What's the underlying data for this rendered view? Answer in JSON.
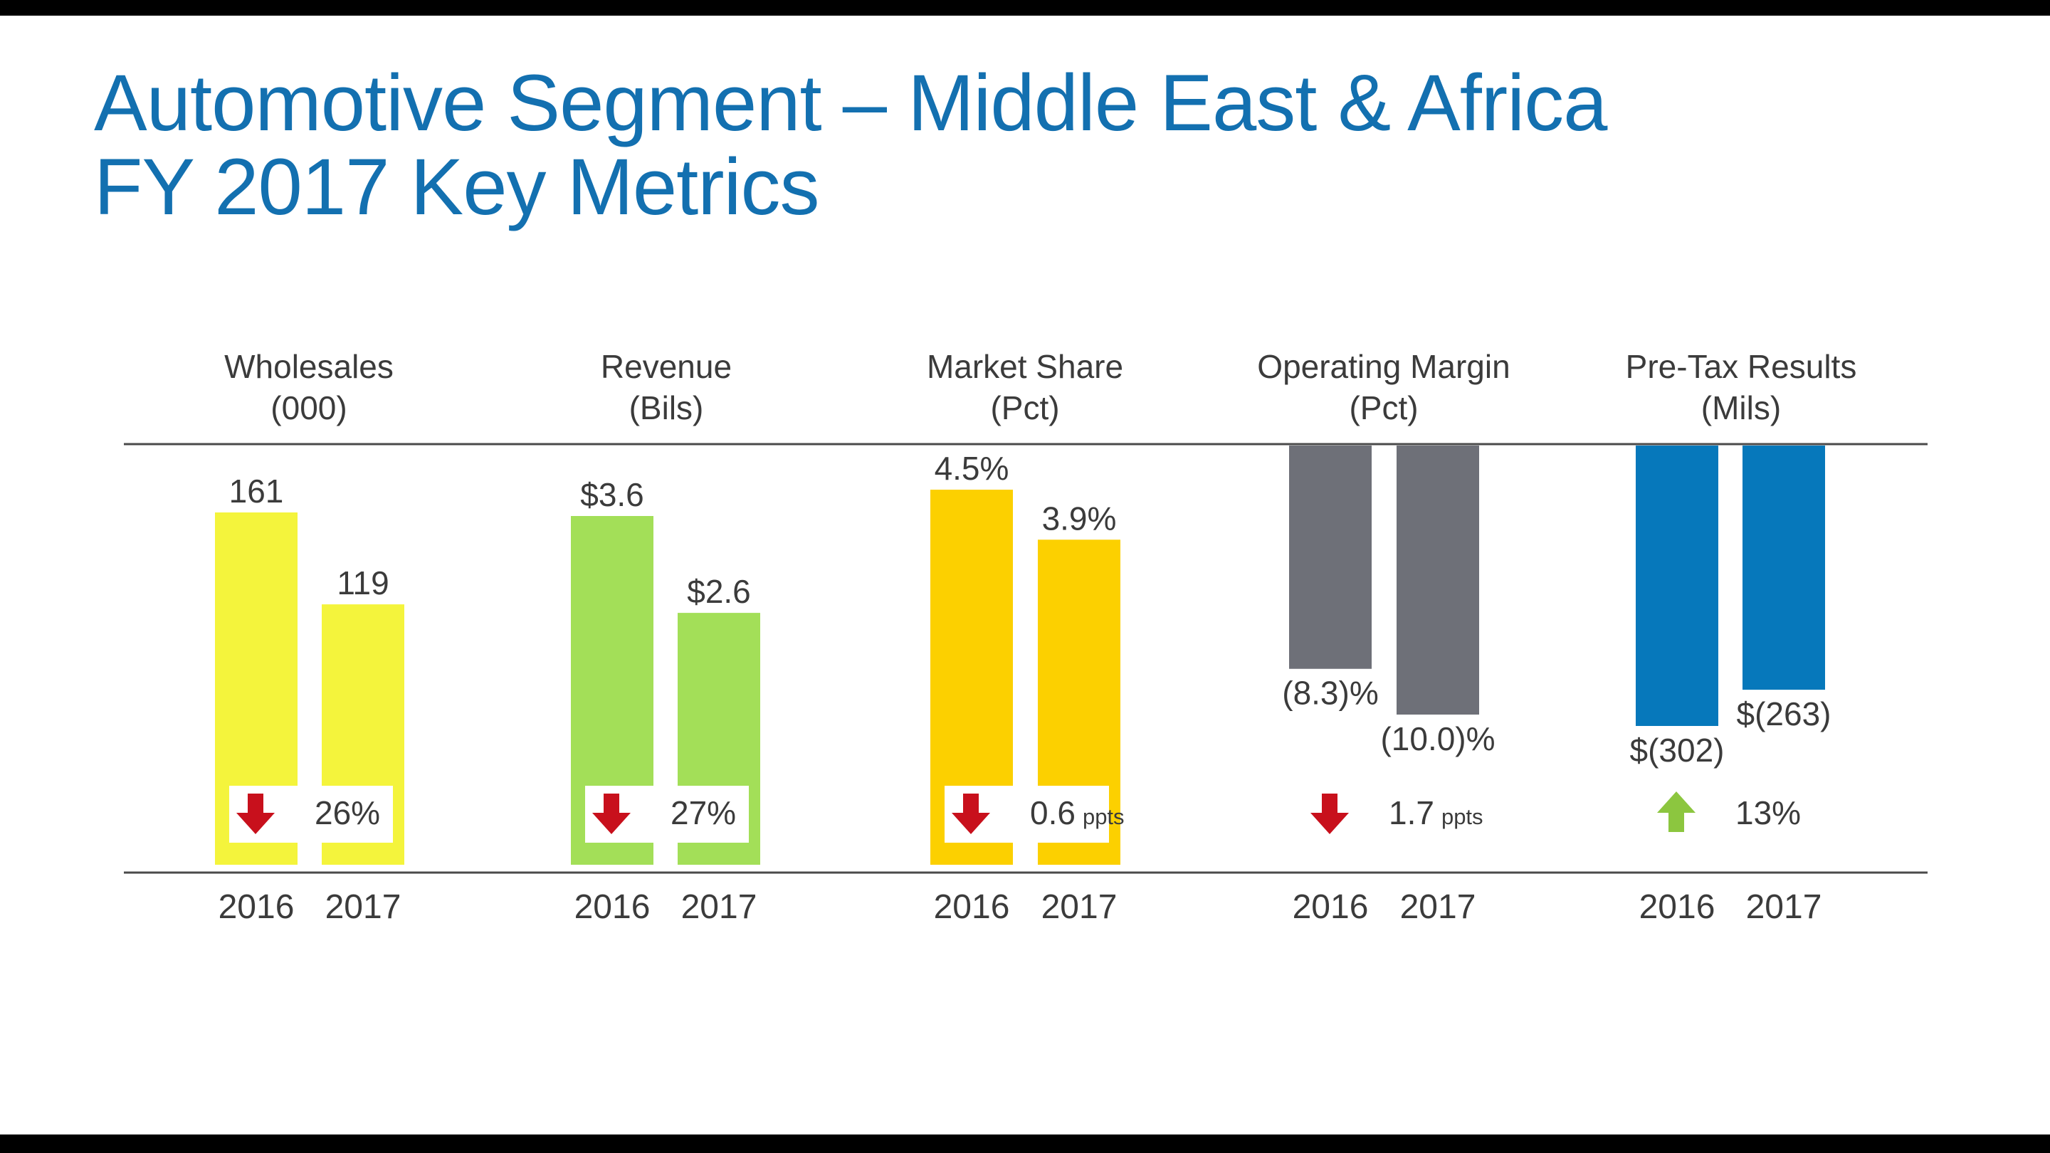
{
  "title": {
    "line1": "Automotive Segment – Middle East & Africa",
    "line2": "FY 2017 Key Metrics"
  },
  "colors": {
    "title": "#1370b0",
    "wholesales": "#f4f43c",
    "revenue": "#a3df58",
    "market_share": "#fcd000",
    "operating_margin": "#6e7078",
    "pre_tax": "#0678bb",
    "arrow_down": "#c8101c",
    "arrow_up": "#8cc63f"
  },
  "chart_data": [
    {
      "type": "bar",
      "title": "Wholesales",
      "unit_label": "(000)",
      "categories": [
        "2016",
        "2017"
      ],
      "values": [
        161,
        119
      ],
      "data_labels": [
        "161",
        "119"
      ],
      "change": {
        "direction": "down",
        "value": "26%",
        "unit": ""
      },
      "color_key": "wholesales"
    },
    {
      "type": "bar",
      "title": "Revenue",
      "unit_label": "(Bils)",
      "categories": [
        "2016",
        "2017"
      ],
      "values": [
        3.6,
        2.6
      ],
      "data_labels": [
        "$3.6",
        "$2.6"
      ],
      "change": {
        "direction": "down",
        "value": "27%",
        "unit": ""
      },
      "color_key": "revenue"
    },
    {
      "type": "bar",
      "title": "Market Share",
      "unit_label": "(Pct)",
      "categories": [
        "2016",
        "2017"
      ],
      "values": [
        4.5,
        3.9
      ],
      "data_labels": [
        "4.5%",
        "3.9%"
      ],
      "change": {
        "direction": "down",
        "value": "0.6",
        "unit": "ppts"
      },
      "color_key": "market_share"
    },
    {
      "type": "bar",
      "title": "Operating Margin",
      "unit_label": "(Pct)",
      "categories": [
        "2016",
        "2017"
      ],
      "values": [
        -8.3,
        -10.0
      ],
      "data_labels": [
        "(8.3)%",
        "(10.0)%"
      ],
      "change": {
        "direction": "down",
        "value": "1.7",
        "unit": "ppts"
      },
      "color_key": "operating_margin"
    },
    {
      "type": "bar",
      "title": "Pre-Tax Results",
      "unit_label": "(Mils)",
      "categories": [
        "2016",
        "2017"
      ],
      "values": [
        -302,
        -263
      ],
      "data_labels": [
        "$(302)",
        "$(263)"
      ],
      "change": {
        "direction": "up",
        "value": "13%",
        "unit": ""
      },
      "color_key": "pre_tax"
    }
  ]
}
